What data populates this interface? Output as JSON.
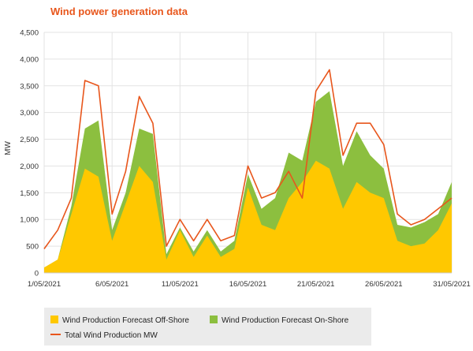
{
  "title": "Wind power generation data",
  "chart_data": {
    "type": "area",
    "title": "Wind power generation data",
    "ylabel": "MW",
    "xlabel": "",
    "ylim": [
      0,
      4500
    ],
    "yticks": [
      "0",
      "500",
      "1,000",
      "1,500",
      "2,000",
      "2,500",
      "3,000",
      "3,500",
      "4,000",
      "4,500"
    ],
    "ytick_values": [
      0,
      500,
      1000,
      1500,
      2000,
      2500,
      3000,
      3500,
      4000,
      4500
    ],
    "xlim": [
      "2021-05-01",
      "2021-05-31"
    ],
    "xticks": [
      "1/05/2021",
      "6/05/2021",
      "11/05/2021",
      "16/05/2021",
      "21/05/2021",
      "26/05/2021",
      "31/05/2021"
    ],
    "xtick_days": [
      1,
      6,
      11,
      16,
      21,
      26,
      31
    ],
    "grid": true,
    "legend_position": "bottom",
    "colors": {
      "offshore": "#ffc800",
      "onshore": "#8cbf3f",
      "total": "#e8561c"
    },
    "x": [
      "2021-05-01",
      "2021-05-02",
      "2021-05-03",
      "2021-05-04",
      "2021-05-05",
      "2021-05-06",
      "2021-05-07",
      "2021-05-08",
      "2021-05-09",
      "2021-05-10",
      "2021-05-11",
      "2021-05-12",
      "2021-05-13",
      "2021-05-14",
      "2021-05-15",
      "2021-05-16",
      "2021-05-17",
      "2021-05-18",
      "2021-05-19",
      "2021-05-20",
      "2021-05-21",
      "2021-05-22",
      "2021-05-23",
      "2021-05-24",
      "2021-05-25",
      "2021-05-26",
      "2021-05-27",
      "2021-05-28",
      "2021-05-29",
      "2021-05-30",
      "2021-05-31"
    ],
    "series": [
      {
        "name": "Wind Production Forecast Off-Shore",
        "values": [
          100,
          250,
          1100,
          1950,
          1800,
          600,
          1300,
          2000,
          1700,
          250,
          800,
          300,
          700,
          300,
          450,
          1600,
          900,
          800,
          1400,
          1700,
          2100,
          1950,
          1200,
          1700,
          1500,
          1400,
          600,
          500,
          550,
          800,
          1300
        ]
      },
      {
        "name": "Wind Production Forecast On-Shore",
        "values": [
          100,
          250,
          1250,
          2700,
          2850,
          800,
          1500,
          2700,
          2600,
          350,
          850,
          400,
          800,
          400,
          600,
          1850,
          1200,
          1400,
          2250,
          2100,
          3200,
          3400,
          2000,
          2650,
          2200,
          1950,
          900,
          850,
          950,
          1100,
          1700
        ]
      },
      {
        "name": "Total Wind Production MW",
        "values": [
          450,
          800,
          1400,
          3600,
          3500,
          1100,
          1900,
          3300,
          2800,
          500,
          1000,
          600,
          1000,
          600,
          700,
          2000,
          1400,
          1500,
          1900,
          1400,
          3400,
          3800,
          2200,
          2800,
          2800,
          2400,
          1100,
          900,
          1000,
          1200,
          1400
        ]
      }
    ]
  },
  "legend": {
    "offshore": "Wind Production Forecast Off-Shore",
    "onshore": "Wind Production Forecast On-Shore",
    "total": "Total Wind Production MW"
  }
}
